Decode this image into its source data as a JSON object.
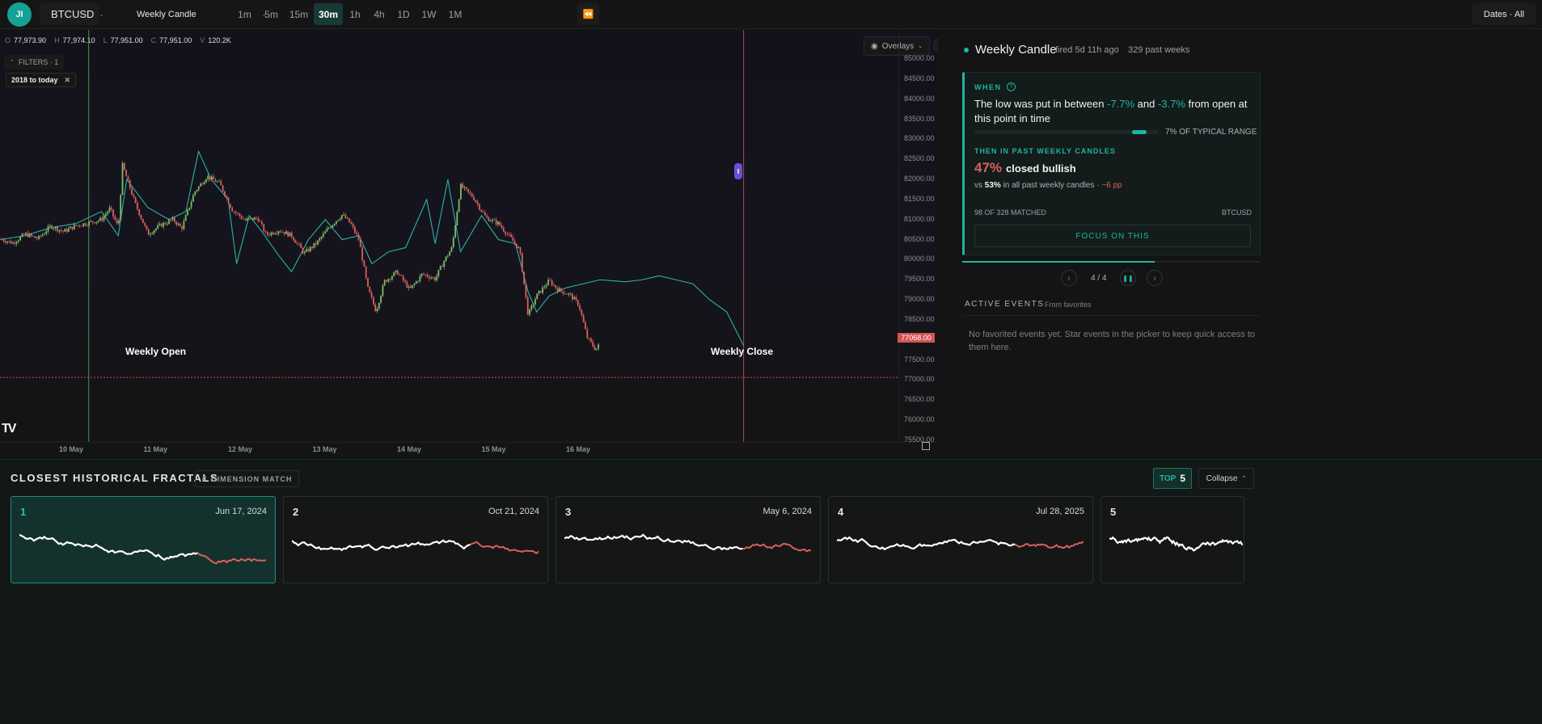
{
  "topbar": {
    "avatar": "JI",
    "symbol": "BTCUSD",
    "event": "Weekly Candle",
    "timeframes": [
      "1m",
      "5m",
      "15m",
      "30m",
      "1h",
      "4h",
      "1D",
      "1W",
      "1M"
    ],
    "active_timeframe": "30m",
    "dates_label": "Dates · All"
  },
  "ohlcv": {
    "o_label": "O",
    "o": "77,973.90",
    "h_label": "H",
    "h": "77,974.10",
    "l_label": "L",
    "l": "77,951.00",
    "c_label": "C",
    "c": "77,951.00",
    "v_label": "V",
    "v": "120.2K"
  },
  "filters": {
    "label": "FILTERS · 1",
    "chip": "2018 to today"
  },
  "overlays_label": "Overlays",
  "chart_data": {
    "type": "line",
    "y_ticks": [
      "85000.00",
      "84500.00",
      "84000.00",
      "83500.00",
      "83000.00",
      "82500.00",
      "82000.00",
      "81500.00",
      "81000.00",
      "80500.00",
      "80000.00",
      "79500.00",
      "79000.00",
      "78500.00",
      "78000.00",
      "77500.00",
      "77000.00",
      "76500.00",
      "76000.00",
      "75500.00"
    ],
    "x_ticks": [
      "10 May",
      "11 May",
      "12 May",
      "13 May",
      "14 May",
      "15 May",
      "16 May"
    ],
    "ylim": [
      75400,
      85100
    ],
    "price_label": "77068.00",
    "weekly_open_label": "Weekly Open",
    "weekly_close_label": "Weekly Close",
    "candle_path": [
      [
        0,
        80520
      ],
      [
        0.15,
        80420
      ],
      [
        0.3,
        80640
      ],
      [
        0.45,
        80520
      ],
      [
        0.6,
        80840
      ],
      [
        0.75,
        80700
      ],
      [
        0.9,
        80850
      ],
      [
        1.05,
        80920
      ],
      [
        1.2,
        81000
      ],
      [
        1.3,
        81280
      ],
      [
        1.4,
        80800
      ],
      [
        1.45,
        82350
      ],
      [
        1.6,
        81400
      ],
      [
        1.75,
        80640
      ],
      [
        1.9,
        80860
      ],
      [
        2.05,
        81000
      ],
      [
        2.15,
        80780
      ],
      [
        2.3,
        81680
      ],
      [
        2.45,
        82080
      ],
      [
        2.6,
        81900
      ],
      [
        2.75,
        81240
      ],
      [
        2.9,
        80980
      ],
      [
        3.05,
        81040
      ],
      [
        3.15,
        80620
      ],
      [
        3.3,
        80740
      ],
      [
        3.45,
        80600
      ],
      [
        3.6,
        80160
      ],
      [
        3.75,
        80420
      ],
      [
        3.9,
        80820
      ],
      [
        4.05,
        81120
      ],
      [
        4.15,
        80900
      ],
      [
        4.25,
        80480
      ],
      [
        4.35,
        79300
      ],
      [
        4.45,
        78720
      ],
      [
        4.55,
        79460
      ],
      [
        4.7,
        79700
      ],
      [
        4.85,
        79250
      ],
      [
        5.0,
        79650
      ],
      [
        5.15,
        79520
      ],
      [
        5.25,
        79950
      ],
      [
        5.35,
        80300
      ],
      [
        5.45,
        81840
      ],
      [
        5.6,
        81560
      ],
      [
        5.75,
        81050
      ],
      [
        5.9,
        80900
      ],
      [
        6.05,
        80520
      ],
      [
        6.15,
        80240
      ],
      [
        6.25,
        78620
      ],
      [
        6.35,
        79100
      ],
      [
        6.5,
        79480
      ],
      [
        6.6,
        79260
      ],
      [
        6.75,
        79120
      ],
      [
        6.85,
        78880
      ],
      [
        6.95,
        78060
      ],
      [
        7.05,
        77760
      ],
      [
        7.1,
        77900
      ]
    ],
    "overlay_path": [
      [
        0,
        80500
      ],
      [
        0.3,
        80600
      ],
      [
        0.6,
        80800
      ],
      [
        0.9,
        80900
      ],
      [
        1.2,
        81200
      ],
      [
        1.4,
        80600
      ],
      [
        1.5,
        82000
      ],
      [
        1.75,
        81300
      ],
      [
        2.0,
        81000
      ],
      [
        2.2,
        81200
      ],
      [
        2.35,
        82700
      ],
      [
        2.5,
        82000
      ],
      [
        2.7,
        81500
      ],
      [
        2.8,
        79900
      ],
      [
        2.95,
        81100
      ],
      [
        3.1,
        80700
      ],
      [
        3.3,
        80100
      ],
      [
        3.45,
        79700
      ],
      [
        3.65,
        80500
      ],
      [
        3.85,
        81000
      ],
      [
        4.05,
        80500
      ],
      [
        4.25,
        80600
      ],
      [
        4.4,
        79900
      ],
      [
        4.6,
        80200
      ],
      [
        4.8,
        80300
      ],
      [
        5.05,
        81500
      ],
      [
        5.15,
        80400
      ],
      [
        5.3,
        82000
      ],
      [
        5.45,
        80200
      ],
      [
        5.7,
        81100
      ],
      [
        5.9,
        80500
      ],
      [
        6.1,
        80400
      ],
      [
        6.25,
        79200
      ],
      [
        6.35,
        78700
      ],
      [
        6.5,
        79100
      ],
      [
        6.7,
        79300
      ],
      [
        6.9,
        79400
      ],
      [
        7.1,
        79500
      ],
      [
        7.4,
        79450
      ],
      [
        7.6,
        79500
      ],
      [
        7.8,
        79600
      ],
      [
        8.0,
        79500
      ],
      [
        8.2,
        79400
      ],
      [
        8.4,
        79000
      ],
      [
        8.6,
        78700
      ],
      [
        8.8,
        77860
      ]
    ],
    "weekly_open_x": 1.05,
    "weekly_close_x": 8.8
  },
  "panel": {
    "title": "Weekly Candle",
    "fired": "fired 5d 11h ago",
    "past": "329 past weeks",
    "when_label": "WHEN",
    "help": "?",
    "desc_pre": "The low was put in between ",
    "low_a": "-7.7%",
    "desc_mid": " and ",
    "low_b": "-3.7%",
    "desc_post": " from open at this point in time",
    "range_text": "7% OF TYPICAL RANGE",
    "range_fill": 0.07,
    "then_label": "THEN IN PAST WEEKLY CANDLES",
    "pct": "47%",
    "pct_label": "closed bullish",
    "vs_pre": "vs ",
    "vs_pct": "53%",
    "vs_post": " in all past weekly candles · ",
    "delta": "−6 pp",
    "matched": "98 OF 328 MATCHED",
    "symbol": "BTCUSD",
    "focus": "FOCUS ON THIS",
    "pager": "4 / 4",
    "active_events": "ACTIVE EVENTS",
    "from_fav": "From favorites",
    "empty": "No favorited events yet. Star events in the picker to keep quick access to them here."
  },
  "fractals": {
    "title": "CLOSEST HISTORICAL FRACTALS",
    "dimension": "DIMENSION MATCH",
    "top_label": "TOP",
    "top_n": "5",
    "collapse": "Collapse",
    "cards": [
      {
        "n": "1",
        "date": "Jun 17, 2024"
      },
      {
        "n": "2",
        "date": "Oct 21, 2024"
      },
      {
        "n": "3",
        "date": "May 6, 2024"
      },
      {
        "n": "4",
        "date": "Jul 28, 2025"
      },
      {
        "n": "5",
        "date": ""
      }
    ]
  },
  "colors": {
    "accent": "#1fb5a3",
    "down": "#d9605c",
    "up": "#7fbd6a",
    "overlay": "#2bb3a6"
  }
}
